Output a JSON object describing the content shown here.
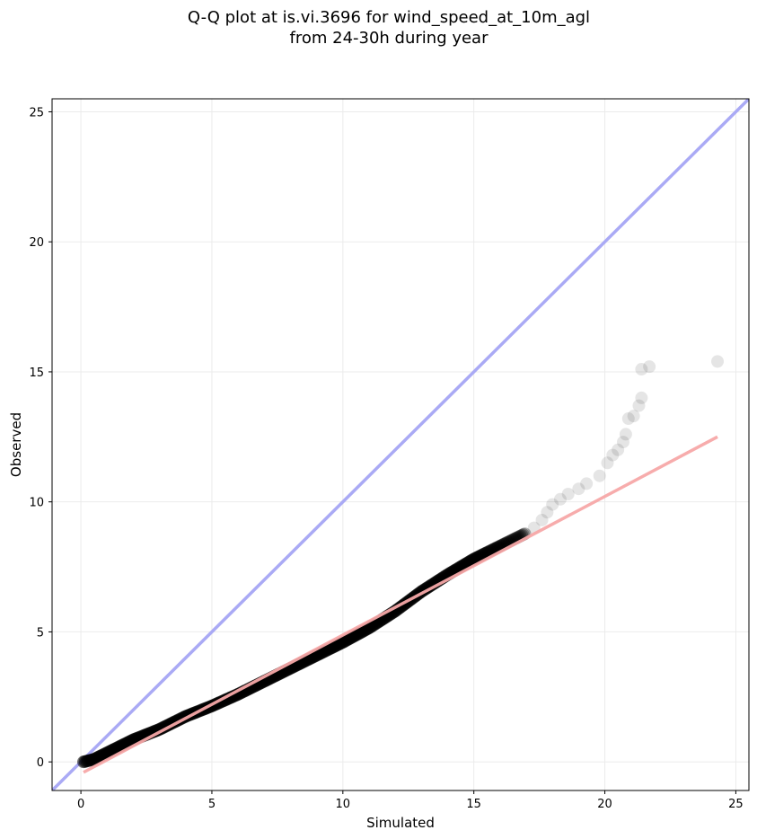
{
  "chart_data": {
    "type": "scatter",
    "title_lines": [
      "Q-Q plot at is.vi.3696 for wind_speed_at_10m_agl",
      "from 24-30h during year"
    ],
    "xlabel": "Simulated",
    "ylabel": "Observed",
    "xlim": [
      -1.1,
      25.5
    ],
    "ylim": [
      -1.1,
      25.5
    ],
    "x_ticks": [
      0,
      5,
      10,
      15,
      20,
      25
    ],
    "y_ticks": [
      0,
      5,
      10,
      15,
      20,
      25
    ],
    "grid": true,
    "reference_line": {
      "color": "#aaaaf5",
      "points": [
        [
          -1.1,
          -1.1
        ],
        [
          25.5,
          25.5
        ]
      ]
    },
    "fit_line": {
      "color": "#f7a8a8",
      "points": [
        [
          0.1,
          -0.4
        ],
        [
          24.3,
          12.5
        ]
      ]
    },
    "quantile_curve": [
      [
        0.1,
        0.0
      ],
      [
        0.5,
        0.1
      ],
      [
        1.0,
        0.35
      ],
      [
        1.5,
        0.6
      ],
      [
        2.0,
        0.85
      ],
      [
        3.0,
        1.25
      ],
      [
        4.0,
        1.75
      ],
      [
        5.0,
        2.15
      ],
      [
        6.0,
        2.6
      ],
      [
        7.0,
        3.1
      ],
      [
        8.0,
        3.6
      ],
      [
        9.0,
        4.1
      ],
      [
        10.0,
        4.6
      ],
      [
        11.0,
        5.15
      ],
      [
        12.0,
        5.8
      ],
      [
        13.0,
        6.55
      ],
      [
        14.0,
        7.2
      ],
      [
        15.0,
        7.8
      ],
      [
        16.0,
        8.3
      ],
      [
        16.5,
        8.55
      ],
      [
        17.0,
        8.8
      ]
    ],
    "tail_points": [
      [
        17.3,
        9.0
      ],
      [
        17.6,
        9.3
      ],
      [
        17.8,
        9.6
      ],
      [
        18.0,
        9.9
      ],
      [
        18.3,
        10.1
      ],
      [
        18.6,
        10.3
      ],
      [
        19.0,
        10.5
      ],
      [
        19.3,
        10.7
      ],
      [
        19.8,
        11.0
      ],
      [
        20.1,
        11.5
      ],
      [
        20.3,
        11.8
      ],
      [
        20.5,
        12.0
      ],
      [
        20.7,
        12.3
      ],
      [
        20.8,
        12.6
      ],
      [
        20.9,
        13.2
      ],
      [
        21.1,
        13.3
      ],
      [
        21.3,
        13.7
      ],
      [
        21.4,
        14.0
      ],
      [
        21.4,
        15.1
      ],
      [
        21.7,
        15.2
      ],
      [
        24.3,
        15.4
      ]
    ]
  }
}
